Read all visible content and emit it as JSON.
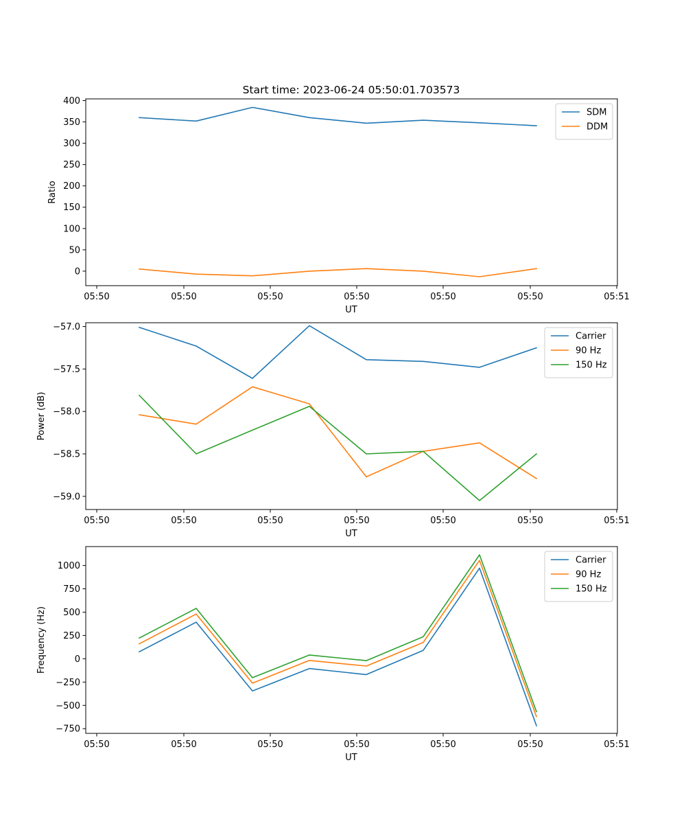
{
  "figure": {
    "title": "Start time: 2023-06-24 05:50:01.703573"
  },
  "chart_data": [
    {
      "type": "line",
      "title": "Start time: 2023-06-24 05:50:01.703573",
      "xlabel": "UT",
      "ylabel": "Ratio",
      "x_tick_labels": [
        "05:50",
        "05:50",
        "05:50",
        "05:50",
        "05:50",
        "05:50",
        "05:51"
      ],
      "y_ticks": [
        0,
        50,
        100,
        150,
        200,
        250,
        300,
        350,
        400
      ],
      "y_tick_labels": [
        "0",
        "50",
        "100",
        "150",
        "200",
        "250",
        "300",
        "350",
        "400"
      ],
      "ylim": [
        -34,
        404
      ],
      "grid": false,
      "legend_position": "top-right",
      "series": [
        {
          "name": "SDM",
          "color": "#1f77b4",
          "values": [
            360,
            352,
            384,
            360,
            347,
            354,
            348,
            341
          ]
        },
        {
          "name": "DDM",
          "color": "#ff7f0e",
          "values": [
            5,
            -7,
            -11,
            0,
            6,
            0,
            -13,
            6
          ]
        }
      ]
    },
    {
      "type": "line",
      "xlabel": "UT",
      "ylabel": "Power (dB)",
      "x_tick_labels": [
        "05:50",
        "05:50",
        "05:50",
        "05:50",
        "05:50",
        "05:50",
        "05:51"
      ],
      "y_ticks": [
        -57.0,
        -57.5,
        -58.0,
        -58.5,
        -59.0
      ],
      "y_tick_labels": [
        "−57.0",
        "−57.5",
        "−58.0",
        "−58.5",
        "−59.0"
      ],
      "ylim": [
        -59.155,
        -56.955
      ],
      "grid": false,
      "legend_position": "top-right",
      "series": [
        {
          "name": "Carrier",
          "color": "#1f77b4",
          "values": [
            -57.01,
            -57.23,
            -57.61,
            -56.99,
            -57.39,
            -57.41,
            -57.48,
            -57.25
          ]
        },
        {
          "name": "90 Hz",
          "color": "#ff7f0e",
          "values": [
            -58.04,
            -58.15,
            -57.71,
            -57.91,
            -58.77,
            -58.47,
            -58.37,
            -58.79
          ]
        },
        {
          "name": "150 Hz",
          "color": "#2ca02c",
          "values": [
            -57.81,
            -58.5,
            -58.22,
            -57.94,
            -58.5,
            -58.47,
            -59.05,
            -58.5
          ]
        }
      ]
    },
    {
      "type": "line",
      "xlabel": "UT",
      "ylabel": "Frequency (Hz)",
      "x_tick_labels": [
        "05:50",
        "05:50",
        "05:50",
        "05:50",
        "05:50",
        "05:50",
        "05:51"
      ],
      "y_ticks": [
        1000,
        750,
        500,
        250,
        0,
        -250,
        -500,
        -750
      ],
      "y_tick_labels": [
        "1000",
        "750",
        "500",
        "250",
        "0",
        "−250",
        "−500",
        "−750"
      ],
      "ylim": [
        -800,
        1203
      ],
      "grid": false,
      "legend_position": "top-right",
      "series": [
        {
          "name": "Carrier",
          "color": "#1f77b4",
          "values": [
            75,
            392,
            -345,
            -105,
            -170,
            90,
            972,
            -718
          ]
        },
        {
          "name": "90 Hz",
          "color": "#ff7f0e",
          "values": [
            160,
            480,
            -262,
            -18,
            -78,
            175,
            1055,
            -620
          ]
        },
        {
          "name": "150 Hz",
          "color": "#2ca02c",
          "values": [
            222,
            540,
            -203,
            40,
            -20,
            237,
            1115,
            -568
          ]
        }
      ]
    }
  ]
}
